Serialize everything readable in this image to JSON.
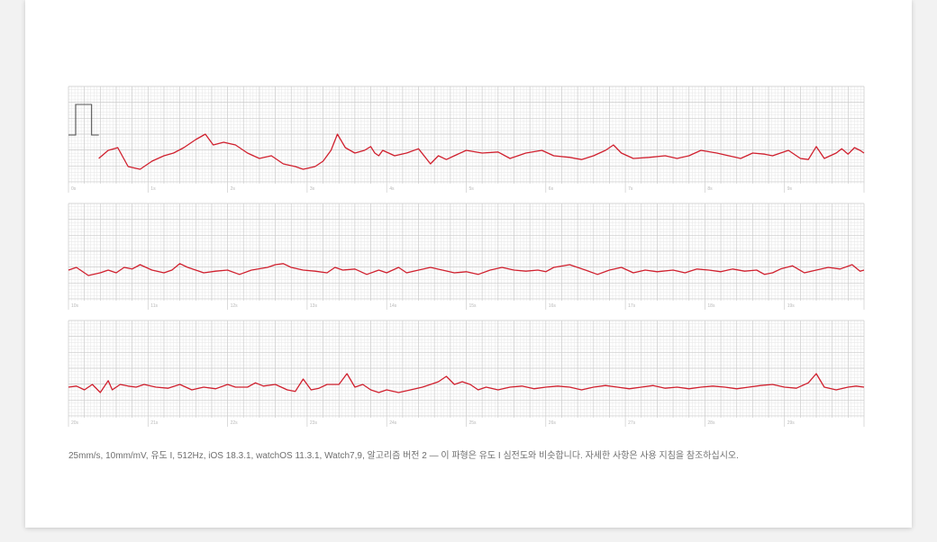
{
  "chart_data": {
    "type": "line",
    "title": "",
    "xlabel": "",
    "ylabel": "",
    "paper_speed": "25mm/s",
    "gain": "10mm/mV",
    "trace_color": "#d0202e",
    "grid_minor_color": "#e6e6e6",
    "grid_major_color": "#cccccc",
    "strips": [
      {
        "name": "strip-1",
        "time_range": [
          0,
          10
        ],
        "tick_labels": [
          "0s",
          "1s",
          "2s",
          "3s",
          "4s",
          "5s",
          "6s",
          "7s",
          "8s",
          "9s"
        ],
        "has_calibration_pulse": true,
        "points": [
          [
            0.38,
            -0.1
          ],
          [
            0.5,
            0.05
          ],
          [
            0.62,
            0.1
          ],
          [
            0.75,
            -0.25
          ],
          [
            0.9,
            -0.3
          ],
          [
            1.05,
            -0.15
          ],
          [
            1.2,
            -0.05
          ],
          [
            1.32,
            0.0
          ],
          [
            1.45,
            0.1
          ],
          [
            1.6,
            0.25
          ],
          [
            1.72,
            0.35
          ],
          [
            1.82,
            0.15
          ],
          [
            1.95,
            0.2
          ],
          [
            2.1,
            0.15
          ],
          [
            2.25,
            0.0
          ],
          [
            2.4,
            -0.1
          ],
          [
            2.55,
            -0.05
          ],
          [
            2.7,
            -0.2
          ],
          [
            2.85,
            -0.25
          ],
          [
            2.95,
            -0.3
          ],
          [
            3.1,
            -0.25
          ],
          [
            3.2,
            -0.15
          ],
          [
            3.3,
            0.05
          ],
          [
            3.38,
            0.35
          ],
          [
            3.48,
            0.1
          ],
          [
            3.6,
            0.0
          ],
          [
            3.72,
            0.05
          ],
          [
            3.8,
            0.12
          ],
          [
            3.85,
            0.0
          ],
          [
            3.9,
            -0.05
          ],
          [
            3.95,
            0.05
          ],
          [
            4.1,
            -0.05
          ],
          [
            4.25,
            0.0
          ],
          [
            4.4,
            0.08
          ],
          [
            4.55,
            -0.2
          ],
          [
            4.65,
            -0.05
          ],
          [
            4.75,
            -0.12
          ],
          [
            4.85,
            -0.05
          ],
          [
            5.0,
            0.05
          ],
          [
            5.2,
            0.0
          ],
          [
            5.4,
            0.02
          ],
          [
            5.55,
            -0.1
          ],
          [
            5.75,
            0.0
          ],
          [
            5.95,
            0.05
          ],
          [
            6.1,
            -0.05
          ],
          [
            6.3,
            -0.08
          ],
          [
            6.45,
            -0.12
          ],
          [
            6.6,
            -0.05
          ],
          [
            6.75,
            0.05
          ],
          [
            6.85,
            0.15
          ],
          [
            6.95,
            0.0
          ],
          [
            7.1,
            -0.1
          ],
          [
            7.3,
            -0.08
          ],
          [
            7.5,
            -0.05
          ],
          [
            7.65,
            -0.1
          ],
          [
            7.8,
            -0.05
          ],
          [
            7.95,
            0.05
          ],
          [
            8.15,
            0.0
          ],
          [
            8.3,
            -0.05
          ],
          [
            8.45,
            -0.1
          ],
          [
            8.6,
            0.0
          ],
          [
            8.75,
            -0.02
          ],
          [
            8.85,
            -0.05
          ],
          [
            8.95,
            0.0
          ],
          [
            9.05,
            0.05
          ],
          [
            9.2,
            -0.1
          ],
          [
            9.3,
            -0.12
          ],
          [
            9.4,
            0.12
          ],
          [
            9.5,
            -0.1
          ],
          [
            9.65,
            0.0
          ],
          [
            9.72,
            0.08
          ],
          [
            9.8,
            -0.02
          ],
          [
            9.88,
            0.1
          ],
          [
            9.95,
            0.05
          ],
          [
            10.0,
            0.0
          ]
        ]
      },
      {
        "name": "strip-2",
        "time_range": [
          10,
          20
        ],
        "tick_labels": [
          "10s",
          "11s",
          "12s",
          "13s",
          "14s",
          "15s",
          "16s",
          "17s",
          "18s",
          "19s"
        ],
        "has_calibration_pulse": false,
        "points": [
          [
            10.0,
            0.0
          ],
          [
            10.1,
            0.05
          ],
          [
            10.25,
            -0.1
          ],
          [
            10.4,
            -0.05
          ],
          [
            10.5,
            0.0
          ],
          [
            10.6,
            -0.05
          ],
          [
            10.7,
            0.05
          ],
          [
            10.8,
            0.02
          ],
          [
            10.9,
            0.1
          ],
          [
            11.05,
            0.0
          ],
          [
            11.2,
            -0.05
          ],
          [
            11.3,
            0.0
          ],
          [
            11.4,
            0.12
          ],
          [
            11.5,
            0.05
          ],
          [
            11.6,
            0.0
          ],
          [
            11.7,
            -0.05
          ],
          [
            11.85,
            -0.02
          ],
          [
            12.0,
            0.0
          ],
          [
            12.15,
            -0.08
          ],
          [
            12.3,
            0.0
          ],
          [
            12.5,
            0.05
          ],
          [
            12.6,
            0.1
          ],
          [
            12.7,
            0.12
          ],
          [
            12.8,
            0.05
          ],
          [
            12.95,
            0.0
          ],
          [
            13.1,
            -0.02
          ],
          [
            13.25,
            -0.05
          ],
          [
            13.35,
            0.05
          ],
          [
            13.45,
            0.0
          ],
          [
            13.6,
            0.02
          ],
          [
            13.75,
            -0.08
          ],
          [
            13.9,
            0.0
          ],
          [
            14.0,
            -0.05
          ],
          [
            14.15,
            0.05
          ],
          [
            14.25,
            -0.05
          ],
          [
            14.4,
            0.0
          ],
          [
            14.55,
            0.05
          ],
          [
            14.7,
            0.0
          ],
          [
            14.85,
            -0.05
          ],
          [
            15.0,
            -0.03
          ],
          [
            15.15,
            -0.08
          ],
          [
            15.3,
            0.0
          ],
          [
            15.45,
            0.05
          ],
          [
            15.6,
            0.0
          ],
          [
            15.75,
            -0.02
          ],
          [
            15.9,
            0.0
          ],
          [
            16.0,
            -0.03
          ],
          [
            16.1,
            0.05
          ],
          [
            16.3,
            0.1
          ],
          [
            16.5,
            0.0
          ],
          [
            16.65,
            -0.08
          ],
          [
            16.8,
            0.0
          ],
          [
            16.95,
            0.05
          ],
          [
            17.1,
            -0.05
          ],
          [
            17.25,
            0.0
          ],
          [
            17.4,
            -0.03
          ],
          [
            17.6,
            0.0
          ],
          [
            17.75,
            -0.05
          ],
          [
            17.9,
            0.02
          ],
          [
            18.05,
            0.0
          ],
          [
            18.2,
            -0.03
          ],
          [
            18.35,
            0.02
          ],
          [
            18.5,
            -0.02
          ],
          [
            18.65,
            0.0
          ],
          [
            18.75,
            -0.08
          ],
          [
            18.85,
            -0.05
          ],
          [
            18.95,
            0.02
          ],
          [
            19.1,
            0.08
          ],
          [
            19.25,
            -0.05
          ],
          [
            19.4,
            0.0
          ],
          [
            19.55,
            0.05
          ],
          [
            19.7,
            0.02
          ],
          [
            19.85,
            0.1
          ],
          [
            19.95,
            -0.02
          ],
          [
            20.0,
            0.0
          ]
        ]
      },
      {
        "name": "strip-3",
        "time_range": [
          20,
          30
        ],
        "tick_labels": [
          "20s",
          "21s",
          "22s",
          "23s",
          "24s",
          "25s",
          "26s",
          "27s",
          "28s",
          "29s"
        ],
        "has_calibration_pulse": false,
        "points": [
          [
            20.0,
            0.0
          ],
          [
            20.1,
            0.02
          ],
          [
            20.2,
            -0.05
          ],
          [
            20.3,
            0.05
          ],
          [
            20.4,
            -0.1
          ],
          [
            20.5,
            0.12
          ],
          [
            20.55,
            -0.05
          ],
          [
            20.65,
            0.05
          ],
          [
            20.75,
            0.02
          ],
          [
            20.85,
            0.0
          ],
          [
            20.95,
            0.05
          ],
          [
            21.1,
            0.0
          ],
          [
            21.25,
            -0.02
          ],
          [
            21.4,
            0.05
          ],
          [
            21.55,
            -0.05
          ],
          [
            21.7,
            0.0
          ],
          [
            21.85,
            -0.03
          ],
          [
            22.0,
            0.05
          ],
          [
            22.1,
            0.0
          ],
          [
            22.25,
            0.0
          ],
          [
            22.35,
            0.08
          ],
          [
            22.45,
            0.02
          ],
          [
            22.6,
            0.05
          ],
          [
            22.75,
            -0.05
          ],
          [
            22.85,
            -0.08
          ],
          [
            22.95,
            0.15
          ],
          [
            23.05,
            -0.05
          ],
          [
            23.15,
            -0.02
          ],
          [
            23.25,
            0.05
          ],
          [
            23.4,
            0.05
          ],
          [
            23.5,
            0.25
          ],
          [
            23.6,
            0.0
          ],
          [
            23.7,
            0.05
          ],
          [
            23.8,
            -0.05
          ],
          [
            23.9,
            -0.1
          ],
          [
            24.0,
            -0.05
          ],
          [
            24.15,
            -0.1
          ],
          [
            24.3,
            -0.05
          ],
          [
            24.45,
            0.0
          ],
          [
            24.55,
            0.05
          ],
          [
            24.65,
            0.1
          ],
          [
            24.75,
            0.2
          ],
          [
            24.85,
            0.05
          ],
          [
            24.95,
            0.1
          ],
          [
            25.05,
            0.05
          ],
          [
            25.15,
            -0.05
          ],
          [
            25.25,
            0.0
          ],
          [
            25.4,
            -0.05
          ],
          [
            25.55,
            0.0
          ],
          [
            25.7,
            0.02
          ],
          [
            25.85,
            -0.03
          ],
          [
            26.0,
            0.0
          ],
          [
            26.15,
            0.02
          ],
          [
            26.3,
            0.0
          ],
          [
            26.45,
            -0.05
          ],
          [
            26.6,
            0.0
          ],
          [
            26.75,
            0.03
          ],
          [
            26.9,
            0.0
          ],
          [
            27.05,
            -0.03
          ],
          [
            27.2,
            0.0
          ],
          [
            27.35,
            0.03
          ],
          [
            27.5,
            -0.02
          ],
          [
            27.65,
            0.0
          ],
          [
            27.8,
            -0.03
          ],
          [
            27.95,
            0.0
          ],
          [
            28.1,
            0.02
          ],
          [
            28.25,
            0.0
          ],
          [
            28.4,
            -0.03
          ],
          [
            28.55,
            0.0
          ],
          [
            28.7,
            0.03
          ],
          [
            28.85,
            0.05
          ],
          [
            29.0,
            0.0
          ],
          [
            29.15,
            -0.02
          ],
          [
            29.3,
            0.08
          ],
          [
            29.4,
            0.25
          ],
          [
            29.5,
            0.0
          ],
          [
            29.65,
            -0.05
          ],
          [
            29.8,
            0.0
          ],
          [
            29.9,
            0.02
          ],
          [
            30.0,
            0.0
          ]
        ]
      }
    ]
  },
  "caption": "25mm/s, 10mm/mV, 유도 I, 512Hz, iOS 18.3.1, watchOS 11.3.1, Watch7,9, 알고리즘 버전 2 — 이 파형은 유도 I 심전도와 비슷합니다. 자세한 사항은 사용 지침을 참조하십시오."
}
